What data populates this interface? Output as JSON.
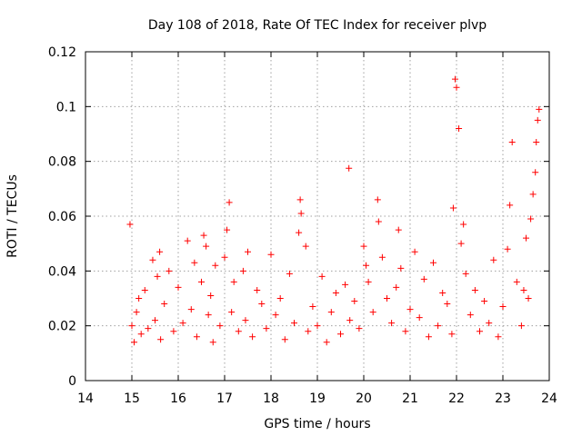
{
  "chart_data": {
    "type": "scatter",
    "title": "Day 108 of 2018, Rate Of TEC Index for receiver plvp",
    "xlabel": "GPS time / hours",
    "ylabel": "ROTI / TECUs",
    "xlim": [
      14,
      24
    ],
    "ylim": [
      0,
      0.12
    ],
    "xticks": [
      14,
      15,
      16,
      17,
      18,
      19,
      20,
      21,
      22,
      23,
      24
    ],
    "yticks": [
      0,
      0.02,
      0.04,
      0.06,
      0.08,
      0.1,
      0.12
    ],
    "ytick_labels": [
      "0",
      "0.02",
      "0.04",
      "0.06",
      "0.08",
      "0.1",
      "0.12"
    ],
    "grid": true,
    "marker": "+",
    "color": "#ff0000",
    "series": [
      {
        "name": "ROTI",
        "x": [
          14.96,
          15.0,
          15.05,
          15.1,
          15.15,
          15.2,
          15.28,
          15.35,
          15.45,
          15.5,
          15.55,
          15.6,
          15.62,
          15.7,
          15.8,
          15.9,
          16.0,
          16.1,
          16.2,
          16.28,
          16.35,
          16.4,
          16.5,
          16.55,
          16.6,
          16.65,
          16.7,
          16.75,
          16.8,
          16.9,
          17.0,
          17.05,
          17.1,
          17.15,
          17.2,
          17.3,
          17.4,
          17.45,
          17.5,
          17.6,
          17.7,
          17.8,
          17.9,
          18.0,
          18.1,
          18.2,
          18.3,
          18.4,
          18.5,
          18.6,
          18.63,
          18.65,
          18.75,
          18.8,
          18.9,
          19.0,
          19.1,
          19.2,
          19.3,
          19.4,
          19.5,
          19.6,
          19.68,
          19.7,
          19.8,
          19.9,
          20.0,
          20.05,
          20.1,
          20.2,
          20.3,
          20.32,
          20.4,
          20.5,
          20.6,
          20.7,
          20.75,
          20.8,
          20.9,
          21.0,
          21.1,
          21.2,
          21.3,
          21.4,
          21.5,
          21.6,
          21.7,
          21.8,
          21.9,
          21.93,
          21.97,
          22.0,
          22.05,
          22.1,
          22.15,
          22.2,
          22.3,
          22.4,
          22.5,
          22.6,
          22.7,
          22.8,
          22.9,
          23.0,
          23.1,
          23.15,
          23.2,
          23.3,
          23.4,
          23.45,
          23.5,
          23.55,
          23.6,
          23.65,
          23.7,
          23.72,
          23.75,
          23.78
        ],
        "y": [
          0.057,
          0.02,
          0.014,
          0.025,
          0.03,
          0.017,
          0.033,
          0.019,
          0.044,
          0.022,
          0.038,
          0.047,
          0.015,
          0.028,
          0.04,
          0.018,
          0.034,
          0.021,
          0.051,
          0.026,
          0.043,
          0.016,
          0.036,
          0.053,
          0.049,
          0.024,
          0.031,
          0.014,
          0.042,
          0.02,
          0.045,
          0.055,
          0.065,
          0.025,
          0.036,
          0.018,
          0.04,
          0.022,
          0.047,
          0.016,
          0.033,
          0.028,
          0.019,
          0.046,
          0.024,
          0.03,
          0.015,
          0.039,
          0.021,
          0.054,
          0.066,
          0.061,
          0.049,
          0.018,
          0.027,
          0.02,
          0.038,
          0.014,
          0.025,
          0.032,
          0.017,
          0.035,
          0.0775,
          0.022,
          0.029,
          0.019,
          0.049,
          0.042,
          0.036,
          0.025,
          0.066,
          0.058,
          0.045,
          0.03,
          0.021,
          0.034,
          0.055,
          0.041,
          0.018,
          0.026,
          0.047,
          0.023,
          0.037,
          0.016,
          0.043,
          0.02,
          0.032,
          0.028,
          0.017,
          0.063,
          0.11,
          0.107,
          0.092,
          0.05,
          0.057,
          0.039,
          0.024,
          0.033,
          0.018,
          0.029,
          0.021,
          0.044,
          0.016,
          0.027,
          0.048,
          0.064,
          0.087,
          0.036,
          0.02,
          0.033,
          0.052,
          0.03,
          0.059,
          0.068,
          0.076,
          0.087,
          0.095,
          0.099
        ]
      }
    ]
  }
}
